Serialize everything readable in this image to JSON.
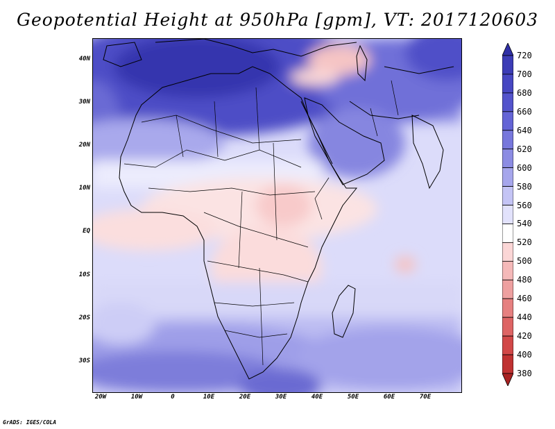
{
  "title": "Geopotential Height at 950hPa [gpm], VT: 2017120603",
  "credit": "GrADS: IGES/COLA",
  "lat_labels": [
    "40N",
    "30N",
    "20N",
    "10N",
    "EQ",
    "10S",
    "20S",
    "30S"
  ],
  "lon_labels": [
    "20W",
    "10W",
    "0",
    "10E",
    "20E",
    "30E",
    "40E",
    "50E",
    "60E",
    "70E"
  ],
  "colorbar": {
    "levels": [
      720,
      700,
      680,
      660,
      640,
      620,
      600,
      580,
      560,
      540,
      520,
      500,
      480,
      460,
      440,
      420,
      400,
      380
    ],
    "colors": [
      "#2f2fa6",
      "#3c3cb6",
      "#4747c2",
      "#5454cc",
      "#6464d6",
      "#7777dc",
      "#8c8ce3",
      "#a6a6ec",
      "#c4c4f5",
      "#e2e2fc",
      "#ffffff",
      "#fbd6d6",
      "#f5b9b9",
      "#eea0a0",
      "#e68080",
      "#de6464",
      "#d24848",
      "#c03232",
      "#a82222"
    ]
  },
  "map": {
    "variable": "Geopotential Height",
    "level_hpa": 950,
    "units": "gpm",
    "valid_time": "2017120603"
  }
}
